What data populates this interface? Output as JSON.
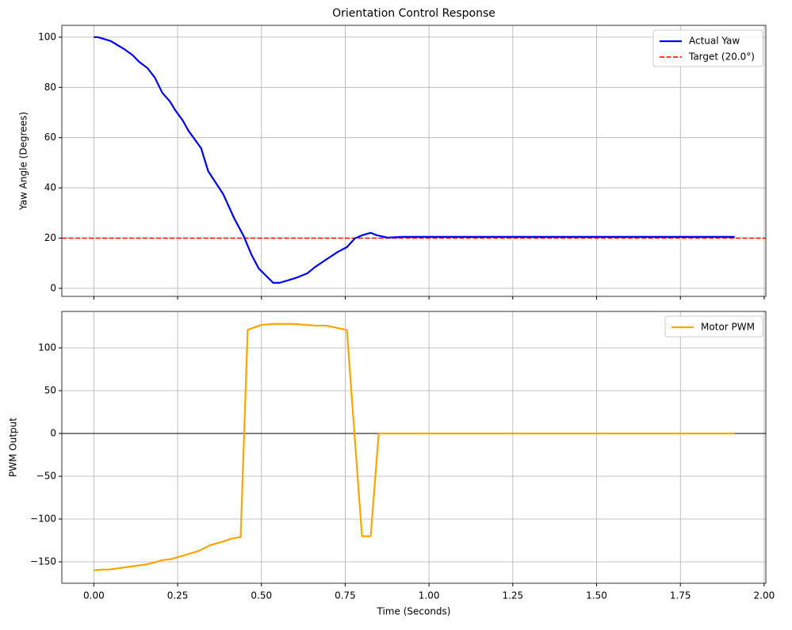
{
  "chart_data": [
    {
      "type": "line",
      "title": "Orientation Control Response",
      "ylabel": "Yaw Angle (Degrees)",
      "x": [
        0,
        0.012,
        0.05,
        0.09,
        0.116,
        0.135,
        0.16,
        0.182,
        0.204,
        0.227,
        0.244,
        0.265,
        0.282,
        0.32,
        0.341,
        0.386,
        0.419,
        0.447,
        0.471,
        0.492,
        0.535,
        0.554,
        0.58,
        0.608,
        0.637,
        0.66,
        0.696,
        0.729,
        0.755,
        0.779,
        0.8,
        0.826,
        0.845,
        0.876,
        0.925,
        1.912
      ],
      "series": [
        {
          "name": "Actual Yaw",
          "color": "#0000ff",
          "values": [
            100,
            100,
            98.5,
            95.3,
            92.8,
            90.2,
            87.7,
            83.9,
            77.9,
            74.4,
            70.7,
            66.9,
            62.8,
            55.8,
            46.7,
            37.5,
            27.8,
            20.8,
            13.2,
            7.9,
            2.2,
            2.2,
            3.2,
            4.4,
            6.0,
            8.5,
            11.7,
            14.6,
            16.4,
            19.9,
            21.1,
            22.1,
            21.1,
            20.2,
            20.5,
            20.5
          ]
        }
      ],
      "hlines": [
        {
          "name": "Target (20.0°)",
          "value": 20,
          "color": "#ff0000",
          "style": "dashed"
        }
      ],
      "xlim": [
        -0.0955,
        2.005
      ],
      "xticks": [
        0,
        0.25,
        0.5,
        0.75,
        1,
        1.25,
        1.5,
        1.75,
        2
      ],
      "xticklabels": false,
      "ylim": [
        -3.2,
        104.7
      ],
      "yticks": [
        0,
        20,
        40,
        60,
        80,
        100
      ],
      "grid": true,
      "legend": "upper right"
    },
    {
      "type": "line",
      "xlabel": "Time (Seconds)",
      "ylabel": "PWM Output",
      "x": [
        0,
        0.026,
        0.045,
        0.073,
        0.156,
        0.178,
        0.204,
        0.227,
        0.275,
        0.315,
        0.346,
        0.388,
        0.41,
        0.438,
        0.459,
        0.499,
        0.535,
        0.594,
        0.665,
        0.693,
        0.755,
        0.8,
        0.826,
        0.85,
        1.912
      ],
      "series": [
        {
          "name": "Motor PWM",
          "color": "#ffa500",
          "values": [
            -160,
            -159,
            -159,
            -157.5,
            -153,
            -151,
            -148,
            -147,
            -141.7,
            -137,
            -130.6,
            -126,
            -123,
            -121,
            121,
            126.8,
            128,
            128,
            126,
            126,
            121,
            -120,
            -120,
            0,
            0
          ]
        }
      ],
      "hlines": [
        {
          "value": 0,
          "color": "#000000",
          "style": "solid"
        }
      ],
      "xlim": [
        -0.0955,
        2.005
      ],
      "xticks": [
        {
          "value": 0,
          "label": "0.00"
        },
        {
          "value": 0.25,
          "label": "0.25"
        },
        {
          "value": 0.5,
          "label": "0.50"
        },
        {
          "value": 0.75,
          "label": "0.75"
        },
        {
          "value": 1,
          "label": "1.00"
        },
        {
          "value": 1.25,
          "label": "1.25"
        },
        {
          "value": 1.5,
          "label": "1.50"
        },
        {
          "value": 1.75,
          "label": "1.75"
        },
        {
          "value": 2,
          "label": "2.00"
        }
      ],
      "ylim": [
        -175,
        142.6
      ],
      "yticks": [
        {
          "value": -150,
          "label": "−150"
        },
        {
          "value": -100,
          "label": "−100"
        },
        {
          "value": -50,
          "label": "−50"
        },
        0,
        50,
        100
      ],
      "grid": true,
      "legend": "upper right"
    }
  ]
}
